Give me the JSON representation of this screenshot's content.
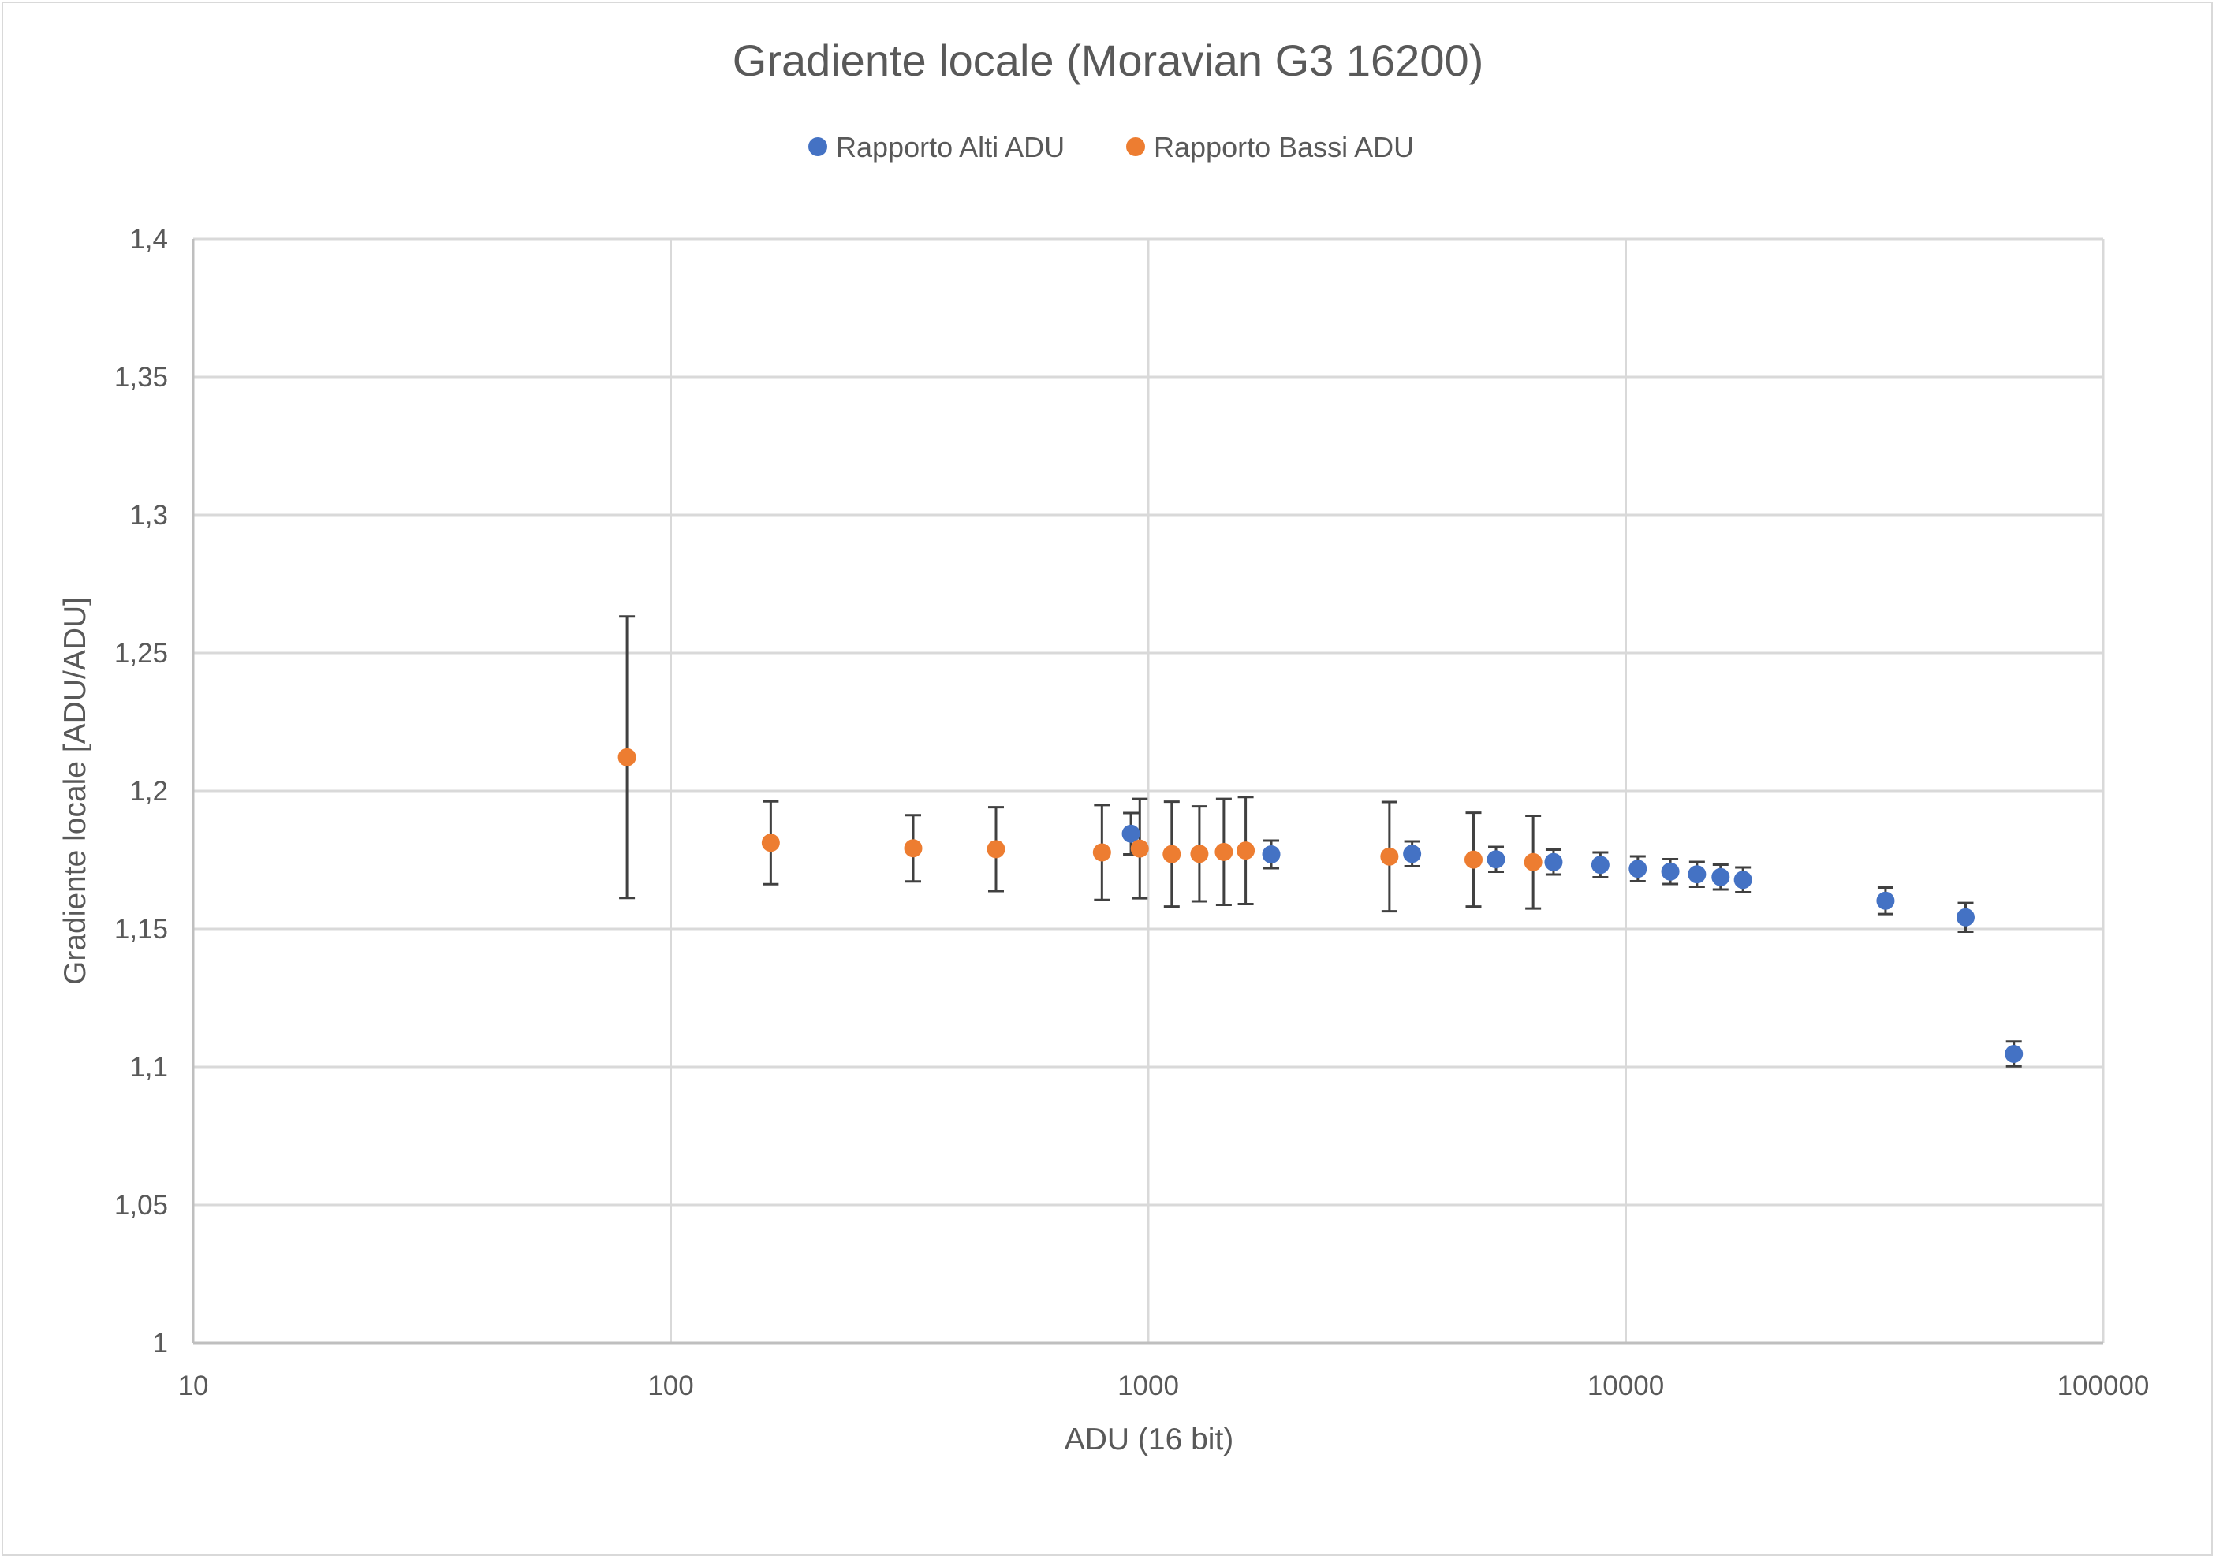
{
  "chart_data": {
    "type": "scatter",
    "title": "Gradiente locale (Moravian G3 16200)",
    "xlabel": "ADU (16 bit)",
    "ylabel": "Gradiente locale [ADU/ADU]",
    "xscale": "log",
    "xlim": [
      10,
      100000
    ],
    "ylim": [
      1,
      1.4
    ],
    "x_ticks": [
      "10",
      "100",
      "1000",
      "10000",
      "100000"
    ],
    "y_ticks": [
      "1",
      "1,05",
      "1,1",
      "1,15",
      "1,2",
      "1,25",
      "1,3",
      "1,35",
      "1,4"
    ],
    "grid": true,
    "legend": "top-center",
    "series": [
      {
        "name": "Rapporto Alti ADU",
        "color": "#4472c4",
        "points": [
          {
            "x": 920,
            "y": 1.1845,
            "err": 0.0075
          },
          {
            "x": 1810,
            "y": 1.177,
            "err": 0.005
          },
          {
            "x": 3570,
            "y": 1.1772,
            "err": 0.0045
          },
          {
            "x": 5350,
            "y": 1.1752,
            "err": 0.0045
          },
          {
            "x": 7060,
            "y": 1.1742,
            "err": 0.0045
          },
          {
            "x": 8850,
            "y": 1.1732,
            "err": 0.0045
          },
          {
            "x": 10600,
            "y": 1.1718,
            "err": 0.0045
          },
          {
            "x": 12400,
            "y": 1.1708,
            "err": 0.0045
          },
          {
            "x": 14100,
            "y": 1.1698,
            "err": 0.0045
          },
          {
            "x": 15800,
            "y": 1.1688,
            "err": 0.0045
          },
          {
            "x": 17600,
            "y": 1.1678,
            "err": 0.0045
          },
          {
            "x": 35000,
            "y": 1.1602,
            "err": 0.0048
          },
          {
            "x": 51500,
            "y": 1.1542,
            "err": 0.0052
          },
          {
            "x": 65000,
            "y": 1.1047,
            "err": 0.0045
          }
        ]
      },
      {
        "name": "Rapporto Bassi ADU",
        "color": "#ed7d31",
        "points": [
          {
            "x": 81,
            "y": 1.2122,
            "err": 0.051
          },
          {
            "x": 162,
            "y": 1.1812,
            "err": 0.015
          },
          {
            "x": 322,
            "y": 1.1792,
            "err": 0.012
          },
          {
            "x": 480,
            "y": 1.1789,
            "err": 0.0152
          },
          {
            "x": 800,
            "y": 1.1777,
            "err": 0.0172
          },
          {
            "x": 960,
            "y": 1.1791,
            "err": 0.018
          },
          {
            "x": 1120,
            "y": 1.1771,
            "err": 0.019
          },
          {
            "x": 1280,
            "y": 1.1772,
            "err": 0.0172
          },
          {
            "x": 1440,
            "y": 1.1779,
            "err": 0.0192
          },
          {
            "x": 1600,
            "y": 1.1784,
            "err": 0.0194
          },
          {
            "x": 3200,
            "y": 1.1762,
            "err": 0.0198
          },
          {
            "x": 4800,
            "y": 1.1751,
            "err": 0.017
          },
          {
            "x": 6400,
            "y": 1.1742,
            "err": 0.0168
          }
        ]
      }
    ]
  }
}
